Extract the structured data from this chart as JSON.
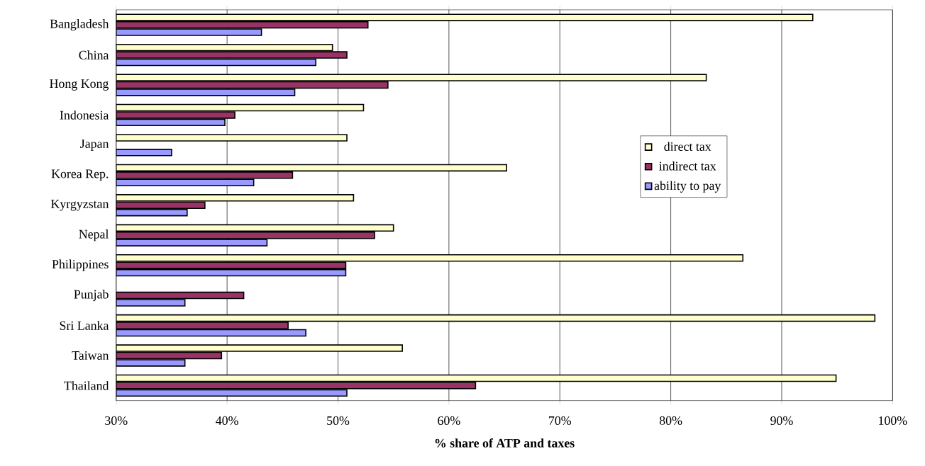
{
  "chart_data": {
    "type": "bar",
    "orientation": "horizontal",
    "xlabel": "**% share of ATP and taxes**",
    "categories": [
      "Bangladesh",
      "China",
      "Hong Kong",
      "Indonesia",
      "Japan",
      "Korea Rep.",
      "Kyrgyzstan",
      "Nepal",
      "Philippines",
      "Punjab",
      "Sri Lanka",
      "Taiwan",
      "Thailand"
    ],
    "series": [
      {
        "name": "direct tax",
        "color": "#ffffcc",
        "values": [
          92.8,
          49.5,
          83.2,
          52.3,
          50.8,
          65.2,
          51.4,
          55.0,
          86.5,
          null,
          98.4,
          55.8,
          94.9
        ]
      },
      {
        "name": "indirect tax",
        "color": "#993366",
        "values": [
          52.7,
          50.8,
          54.5,
          40.7,
          null,
          45.9,
          38.0,
          53.3,
          50.7,
          41.5,
          45.5,
          39.5,
          62.4
        ]
      },
      {
        "name": "ability to pay",
        "color": "#9999ff",
        "values": [
          43.1,
          48.0,
          46.1,
          39.8,
          35.0,
          42.4,
          36.4,
          43.6,
          50.7,
          36.2,
          47.1,
          36.2,
          50.8
        ]
      }
    ],
    "xlim": [
      30,
      100
    ],
    "xticks": [
      {
        "value": 30,
        "label": "30%"
      },
      {
        "value": 40,
        "label": "40%"
      },
      {
        "value": 50,
        "label": "50%"
      },
      {
        "value": 60,
        "label": "60%"
      },
      {
        "value": 70,
        "label": "70%"
      },
      {
        "value": 80,
        "label": "80%"
      },
      {
        "value": 90,
        "label": "90%"
      },
      {
        "value": 100,
        "label": "100%"
      }
    ],
    "grid": "x",
    "legend": "right"
  }
}
